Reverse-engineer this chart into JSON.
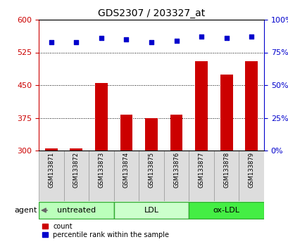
{
  "title": "GDS2307 / 203327_at",
  "samples": [
    "GSM133871",
    "GSM133872",
    "GSM133873",
    "GSM133874",
    "GSM133875",
    "GSM133876",
    "GSM133877",
    "GSM133878",
    "GSM133879"
  ],
  "counts": [
    305,
    305,
    455,
    383,
    375,
    382,
    505,
    475,
    505
  ],
  "percentiles": [
    83,
    83,
    86,
    85,
    83,
    84,
    87,
    86,
    87
  ],
  "ylim_left": [
    300,
    600
  ],
  "ylim_right": [
    0,
    100
  ],
  "yticks_left": [
    300,
    375,
    450,
    525,
    600
  ],
  "yticks_right": [
    0,
    25,
    50,
    75,
    100
  ],
  "groups": [
    {
      "label": "untreated",
      "indices": [
        0,
        1,
        2
      ],
      "color": "#bbffbb"
    },
    {
      "label": "LDL",
      "indices": [
        3,
        4,
        5
      ],
      "color": "#ccffcc"
    },
    {
      "label": "ox-LDL",
      "indices": [
        6,
        7,
        8
      ],
      "color": "#44ee44"
    }
  ],
  "bar_color": "#cc0000",
  "dot_color": "#0000cc",
  "bar_width": 0.5,
  "grid_linestyle": "dotted",
  "grid_color": "black",
  "left_tick_color": "#cc0000",
  "right_tick_color": "#0000cc",
  "legend_items": [
    {
      "label": "count",
      "color": "#cc0000"
    },
    {
      "label": "percentile rank within the sample",
      "color": "#0000cc"
    }
  ],
  "agent_label": "agent",
  "bg_color": "#ffffff",
  "sample_box_color": "#dddddd",
  "sample_box_edge": "#999999",
  "group_edge_color": "#33aa33"
}
